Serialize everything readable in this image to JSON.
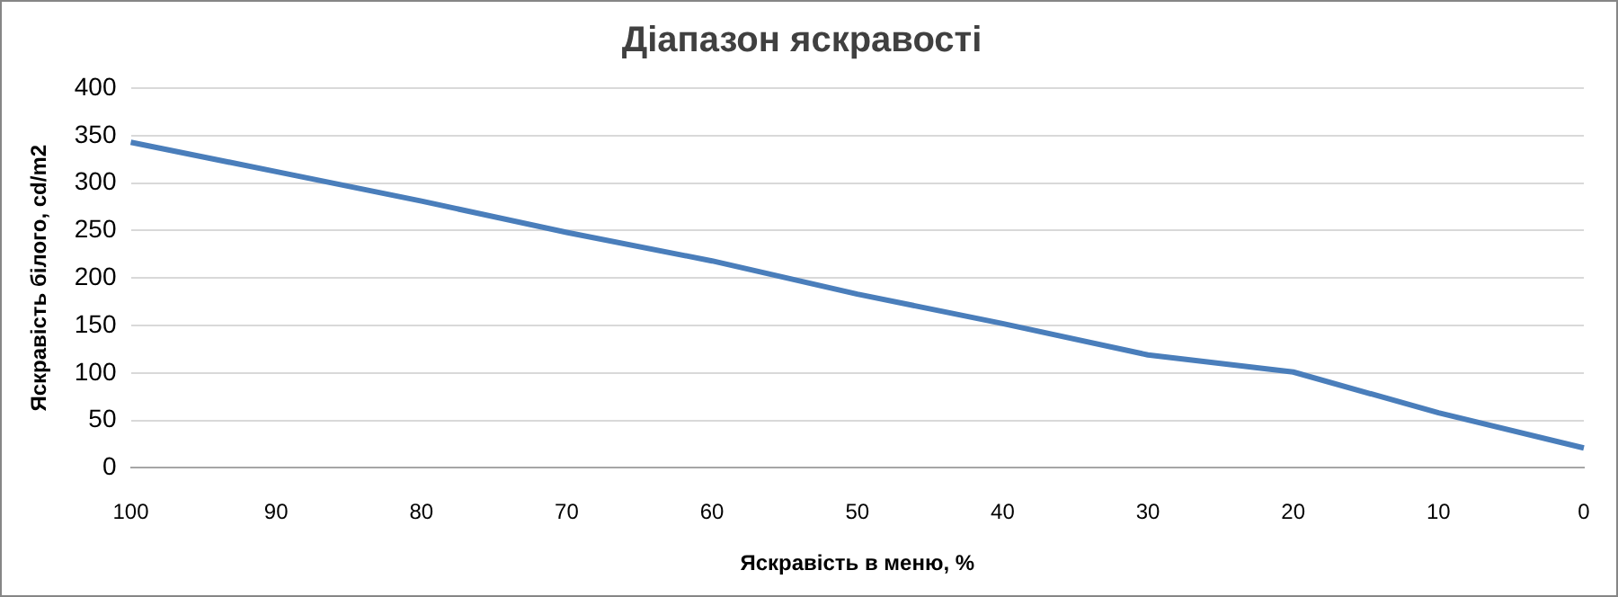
{
  "chart_data": {
    "type": "line",
    "title": "Діапазон яскравості",
    "xlabel": "Яскравість в меню, %",
    "ylabel": "Яскравість білого, cd/m2",
    "categories": [
      "100",
      "90",
      "80",
      "70",
      "60",
      "50",
      "40",
      "30",
      "20",
      "10",
      "0"
    ],
    "series": [
      {
        "color": "#4a7ebb",
        "values": [
          343,
          312,
          281,
          248,
          218,
          183,
          152,
          119,
          101,
          58,
          21
        ]
      }
    ],
    "ylim": [
      0,
      400
    ],
    "yticks": [
      0,
      50,
      100,
      150,
      200,
      250,
      300,
      350,
      400
    ],
    "grid": "y",
    "legend": false,
    "marker": "none",
    "line_style": "solid"
  }
}
